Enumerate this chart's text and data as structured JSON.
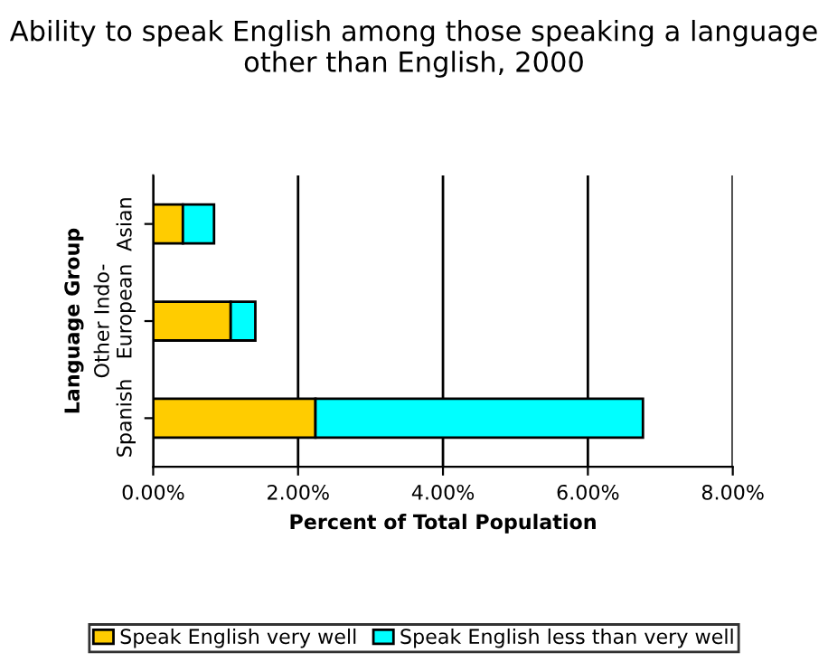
{
  "chart_data": {
    "type": "bar",
    "orientation": "horizontal",
    "stacked": true,
    "title": "Ability to speak English among those speaking a language other than English, 2000",
    "xlabel": "Percent of Total Population",
    "ylabel": "Language Group",
    "categories": [
      "Asian",
      "Other Indo-European",
      "Spanish"
    ],
    "series": [
      {
        "name": "Speak English very well",
        "color": "#ffcc00",
        "values": [
          0.41,
          1.07,
          2.24
        ]
      },
      {
        "name": "Speak English less than very well",
        "color": "#00ffff",
        "values": [
          0.43,
          0.34,
          4.52
        ]
      }
    ],
    "xlim": [
      0,
      8
    ],
    "xticks": [
      {
        "value": 0,
        "label": "0.00%"
      },
      {
        "value": 2,
        "label": "2.00%"
      },
      {
        "value": 4,
        "label": "4.00%"
      },
      {
        "value": 6,
        "label": "6.00%"
      },
      {
        "value": 8,
        "label": "8.00%"
      }
    ],
    "grid": "x",
    "legend": "bottom"
  }
}
